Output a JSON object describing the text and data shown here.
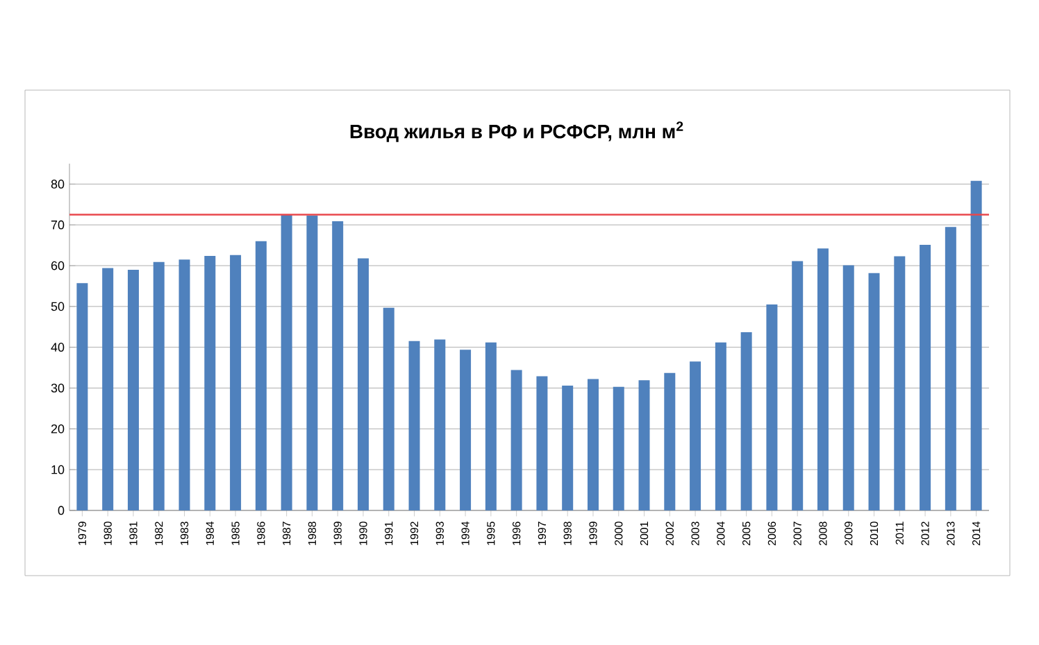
{
  "chart_data": {
    "type": "bar",
    "title": "Ввод жилья в РФ и РСФСР, млн м$^{2}$",
    "categories": [
      "1979",
      "1980",
      "1981",
      "1982",
      "1983",
      "1984",
      "1985",
      "1986",
      "1987",
      "1988",
      "1989",
      "1990",
      "1991",
      "1992",
      "1993",
      "1994",
      "1995",
      "1996",
      "1997",
      "1998",
      "1999",
      "2000",
      "2001",
      "2002",
      "2003",
      "2004",
      "2005",
      "2006",
      "2007",
      "2008",
      "2009",
      "2010",
      "2011",
      "2012",
      "2013",
      "2014"
    ],
    "values": [
      55.7,
      59.4,
      59,
      60.9,
      61.5,
      62.4,
      62.6,
      66,
      72.5,
      72.3,
      70.9,
      61.8,
      49.7,
      41.5,
      41.9,
      39.4,
      41.2,
      34.4,
      32.9,
      30.6,
      32.2,
      30.3,
      31.9,
      33.7,
      36.5,
      41.2,
      43.7,
      50.5,
      61.1,
      64.2,
      60.1,
      58.2,
      62.3,
      65.1,
      69.5,
      80.8
    ],
    "color": "#4f81bd",
    "ylim": [
      0,
      85
    ],
    "yticks": [
      0,
      10,
      20,
      30,
      40,
      50,
      60,
      70,
      80
    ],
    "grid": "y",
    "ref_lines": [
      {
        "axis": "y",
        "value": 72.5,
        "color": "#e8474c"
      }
    ]
  }
}
